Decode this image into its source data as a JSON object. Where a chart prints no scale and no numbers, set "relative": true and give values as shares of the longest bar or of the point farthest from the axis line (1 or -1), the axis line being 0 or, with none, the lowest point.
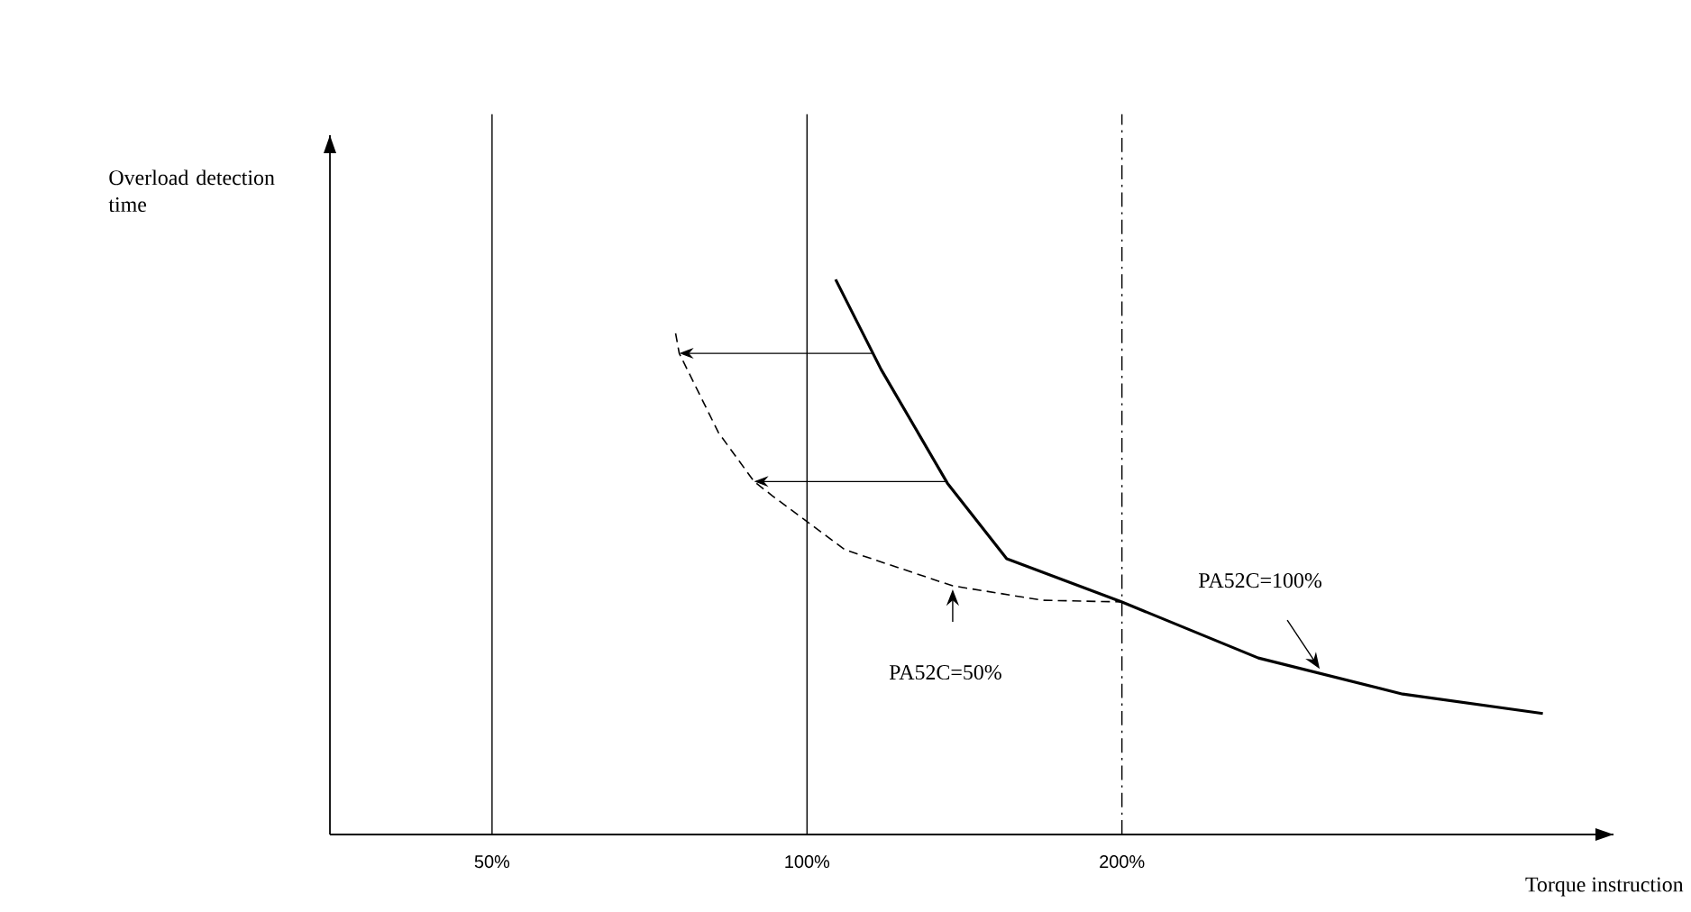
{
  "chart_data": {
    "type": "line",
    "relative": true,
    "log": "x",
    "xlabel": "Torque instruction",
    "ylabel": "Overload detection time",
    "xlim": [
      35,
      590
    ],
    "xticks": [
      {
        "value": 50,
        "label": "50%"
      },
      {
        "value": 100,
        "label": "100%"
      },
      {
        "value": 200,
        "label": "200%"
      }
    ],
    "series": [
      {
        "color": "#000000",
        "line_style": "solid",
        "x": [
          106.5,
          117.7,
          136.2,
          155.2,
          200,
          270,
          371,
          505
        ],
        "values": [
          1,
          0.838,
          0.633,
          0.497,
          0.419,
          0.318,
          0.253,
          0.218
        ]
      },
      {
        "color": "#000000",
        "line_style": "dashed",
        "x": [
          74.9,
          75.5,
          82.3,
          89.0,
          92.7,
          108.7,
          137.8,
          168,
          200
        ],
        "values": [
          0.903,
          0.867,
          0.724,
          0.636,
          0.61,
          0.513,
          0.448,
          0.422,
          0.419
        ]
      }
    ],
    "ref_lines": [
      {
        "axis": "x",
        "value": 50,
        "line_style": "solid"
      },
      {
        "axis": "x",
        "value": 100,
        "line_style": "solid"
      },
      {
        "axis": "x",
        "value": 200,
        "line_style": "dashdot"
      }
    ],
    "annotations": [
      "PA52C=100%",
      "PA52C=50%"
    ]
  }
}
